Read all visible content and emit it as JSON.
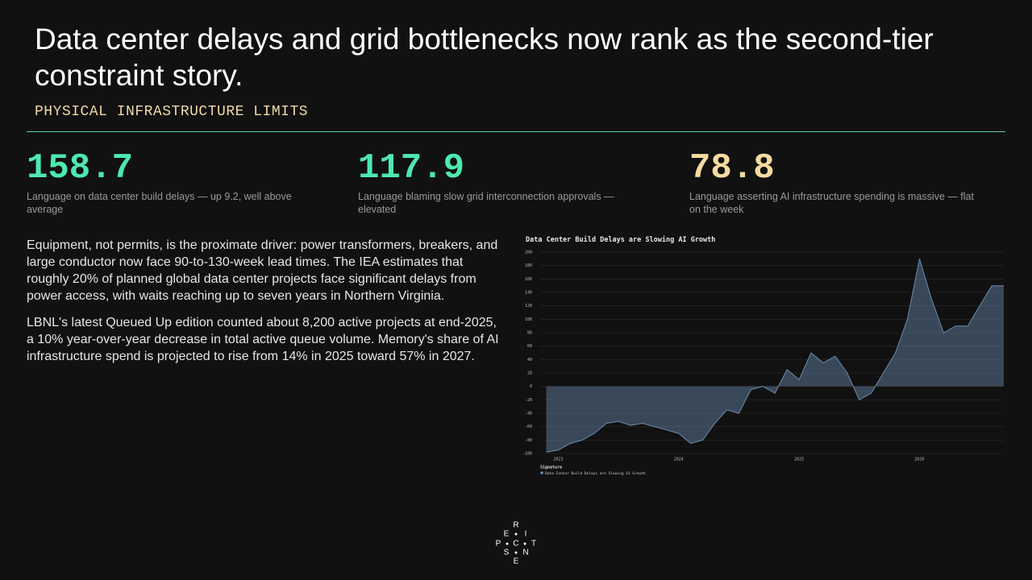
{
  "header": {
    "title": "Data center delays and grid bottlenecks now rank as the second-tier constraint story.",
    "subtitle": "PHYSICAL INFRASTRUCTURE LIMITS"
  },
  "metrics": [
    {
      "value": 158.7,
      "label": "Language on data center build delays — up 9.2, well above average",
      "color": "#4de8b0"
    },
    {
      "value": 117.9,
      "label": "Language blaming slow grid interconnection approvals — elevated",
      "color": "#4de8b0"
    },
    {
      "value": 78.8,
      "label": "Language asserting AI infrastructure spending is massive — flat on the week",
      "color": "#f5dba0"
    }
  ],
  "body": {
    "paragraphs": [
      "Equipment, not permits, is the proximate driver: power transformers, breakers, and large conductor now face 90-to-130-week lead times. The IEA estimates that roughly 20% of planned global data center projects face significant delays from power access, with waits reaching up to seven years in Northern Virginia.",
      "LBNL's latest Queued Up edition counted about 8,200 active projects at end-2025, a 10% year-over-year decrease in total active queue volume. Memory's share of AI infrastructure spend is projected to rise from 14% in 2025 toward 57% in 2027."
    ]
  },
  "chart_data": {
    "type": "area",
    "title": "Data Center Build Delays are Slowing AI Growth",
    "legend_title": "Signature",
    "x": [
      2022.9,
      2023.0,
      2023.1,
      2023.2,
      2023.3,
      2023.4,
      2023.5,
      2023.6,
      2023.7,
      2023.8,
      2023.9,
      2024.0,
      2024.1,
      2024.2,
      2024.3,
      2024.4,
      2024.5,
      2024.6,
      2024.7,
      2024.8,
      2024.9,
      2025.0,
      2025.1,
      2025.2,
      2025.3,
      2025.4,
      2025.5,
      2025.6,
      2025.7,
      2025.8,
      2025.9,
      2026.0,
      2026.1,
      2026.2,
      2026.3,
      2026.4,
      2026.5,
      2026.6,
      2026.7
    ],
    "series": [
      {
        "name": "Data Center Build Delays are Slowing AI Growth",
        "color": "#6b8bb0",
        "values": [
          -98,
          -95,
          -85,
          -80,
          -70,
          -55,
          -52,
          -58,
          -55,
          -60,
          -65,
          -70,
          -85,
          -80,
          -55,
          -35,
          -40,
          -5,
          0,
          -10,
          25,
          10,
          50,
          35,
          45,
          20,
          -20,
          -10,
          20,
          50,
          100,
          190,
          130,
          80,
          90,
          90,
          120,
          150,
          150
        ]
      }
    ],
    "xlim": [
      2022.85,
      2026.7
    ],
    "xticks": [
      2023,
      2024,
      2025,
      2026
    ],
    "ylim": [
      -100,
      200
    ],
    "yticks": [
      -100,
      -80,
      -60,
      -40,
      -20,
      0,
      20,
      40,
      60,
      80,
      100,
      120,
      140,
      160,
      180,
      200
    ],
    "grid": true
  },
  "logo": {
    "letters": [
      "R",
      "E",
      "I",
      "P",
      "C",
      "T",
      "S",
      "N",
      "E"
    ]
  }
}
